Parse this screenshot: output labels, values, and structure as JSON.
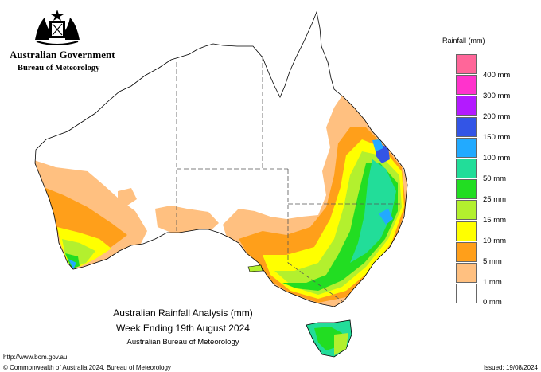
{
  "header": {
    "government": "Australian Government",
    "bureau": "Bureau of Meteorology"
  },
  "legend": {
    "title": "Rainfall (mm)",
    "classes": [
      {
        "label": "",
        "color": "#ff6699"
      },
      {
        "label": "400 mm",
        "color": "#ff33cc"
      },
      {
        "label": "300 mm",
        "color": "#b31aff"
      },
      {
        "label": "200 mm",
        "color": "#3355e6"
      },
      {
        "label": "150 mm",
        "color": "#22aaff"
      },
      {
        "label": "100 mm",
        "color": "#22dd99"
      },
      {
        "label": "50 mm",
        "color": "#22dd22"
      },
      {
        "label": "25 mm",
        "color": "#b3f02e"
      },
      {
        "label": "15 mm",
        "color": "#ffff00"
      },
      {
        "label": "10 mm",
        "color": "#ff9f1a"
      },
      {
        "label": "5 mm",
        "color": "#ffc080"
      },
      {
        "label": "1 mm",
        "color": "#ffffff"
      }
    ],
    "bottom_label": "0 mm"
  },
  "caption": {
    "line1": "Australian Rainfall Analysis (mm)",
    "line2": "Week Ending 19th August 2024",
    "line3": "Australian Bureau of Meteorology"
  },
  "footer": {
    "url": "http://www.bom.gov.au",
    "copyright": "© Commonwealth of Australia 2024, Bureau of Meteorology",
    "issued": "Issued: 19/08/2024"
  }
}
